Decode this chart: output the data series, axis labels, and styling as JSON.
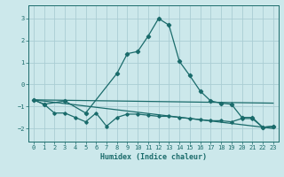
{
  "xlabel": "Humidex (Indice chaleur)",
  "xlim": [
    -0.5,
    23.5
  ],
  "ylim": [
    -2.6,
    3.6
  ],
  "yticks": [
    -2,
    -1,
    0,
    1,
    2,
    3
  ],
  "xticks": [
    0,
    1,
    2,
    3,
    4,
    5,
    6,
    7,
    8,
    9,
    10,
    11,
    12,
    13,
    14,
    15,
    16,
    17,
    18,
    19,
    20,
    21,
    22,
    23
  ],
  "bg_color": "#cce8eb",
  "grid_color": "#aacdd4",
  "line_color": "#1a6b6b",
  "upper_line_x": [
    0,
    23
  ],
  "upper_line_y": [
    -0.7,
    -0.85
  ],
  "lower_line_x": [
    0,
    23
  ],
  "lower_line_y": [
    -0.7,
    -2.0
  ],
  "bumpy_x": [
    0,
    1,
    2,
    3,
    4,
    5,
    6,
    7,
    8,
    9,
    10,
    11,
    12,
    13,
    14,
    15,
    16,
    17,
    18,
    19,
    20,
    21,
    22,
    23
  ],
  "bumpy_y": [
    -0.7,
    -0.9,
    -1.3,
    -1.3,
    -1.5,
    -1.7,
    -1.3,
    -1.9,
    -1.5,
    -1.35,
    -1.35,
    -1.4,
    -1.45,
    -1.45,
    -1.5,
    -1.55,
    -1.6,
    -1.65,
    -1.65,
    -1.7,
    -1.55,
    -1.55,
    -1.95,
    -1.9
  ],
  "main_x": [
    0,
    1,
    3,
    5,
    8,
    9,
    10,
    11,
    12,
    13,
    14,
    15,
    16,
    17,
    18,
    19,
    20,
    21,
    22,
    23
  ],
  "main_y": [
    -0.7,
    -0.9,
    -0.75,
    -1.3,
    0.5,
    1.4,
    1.5,
    2.2,
    3.0,
    2.7,
    1.05,
    0.4,
    -0.3,
    -0.75,
    -0.85,
    -0.9,
    -1.5,
    -1.5,
    -1.95,
    -1.9
  ]
}
